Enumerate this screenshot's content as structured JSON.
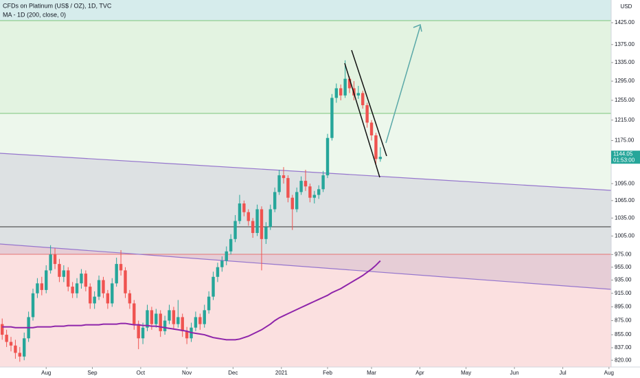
{
  "chart_data": {
    "type": "candlestick",
    "title": "CFDs on Platinum (US$ / OZ), 1D, TVC",
    "y_unit": "USD",
    "log_scale": true,
    "up_color": "#26a69a",
    "down_color": "#ef5350",
    "ylim": [
      811,
      1479
    ],
    "yticks": [
      {
        "value": 1425,
        "label": "1425.00"
      },
      {
        "value": 1375,
        "label": "1375.00"
      },
      {
        "value": 1335,
        "label": "1335.00"
      },
      {
        "value": 1295,
        "label": "1295.00"
      },
      {
        "value": 1255,
        "label": "1255.00"
      },
      {
        "value": 1215,
        "label": "1215.00"
      },
      {
        "value": 1175,
        "label": "1175.00"
      },
      {
        "value": 1095,
        "label": "1095.00"
      },
      {
        "value": 1065,
        "label": "1065.00"
      },
      {
        "value": 1035,
        "label": "1035.00"
      },
      {
        "value": 1005,
        "label": "1005.00"
      },
      {
        "value": 975,
        "label": "975.00"
      },
      {
        "value": 955,
        "label": "955.00"
      },
      {
        "value": 935,
        "label": "935.00"
      },
      {
        "value": 915,
        "label": "915.00"
      },
      {
        "value": 895,
        "label": "895.00"
      },
      {
        "value": 875,
        "label": "875.00"
      },
      {
        "value": 855,
        "label": "855.00"
      },
      {
        "value": 837,
        "label": "837.00"
      },
      {
        "value": 820,
        "label": "820.00"
      }
    ],
    "xlim": [
      0,
      139
    ],
    "xticks": [
      {
        "value": 10.5,
        "label": "Aug"
      },
      {
        "value": 21,
        "label": "Sep"
      },
      {
        "value": 32,
        "label": "Oct"
      },
      {
        "value": 42.5,
        "label": "Nov"
      },
      {
        "value": 53,
        "label": "Dec"
      },
      {
        "value": 64,
        "label": "2021"
      },
      {
        "value": 74.5,
        "label": "Feb"
      },
      {
        "value": 84.5,
        "label": "Mar"
      },
      {
        "value": 95.5,
        "label": "Apr"
      },
      {
        "value": 106,
        "label": "May"
      },
      {
        "value": 117,
        "label": "Jun"
      },
      {
        "value": 128,
        "label": "Jul"
      },
      {
        "value": 138.5,
        "label": "Aug"
      }
    ],
    "open": [
      870,
      855,
      845,
      840,
      830,
      825,
      850,
      880,
      915,
      930,
      920,
      950,
      975,
      960,
      940,
      950,
      925,
      915,
      930,
      945,
      925,
      900,
      910,
      935,
      915,
      900,
      930,
      960,
      950,
      915,
      900,
      870,
      850,
      865,
      890,
      870,
      885,
      860,
      875,
      890,
      870,
      880,
      860,
      850,
      865,
      880,
      870,
      890,
      910,
      940,
      955,
      965,
      980,
      1000,
      1030,
      1060,
      1045,
      1030,
      1010,
      1050,
      1000,
      1020,
      1050,
      1080,
      1110,
      1105,
      1070,
      1050,
      1080,
      1100,
      1090,
      1070,
      1075,
      1085,
      1110,
      1180,
      1260,
      1280,
      1265,
      1300,
      1280,
      1265,
      1270,
      1245,
      1210,
      1185,
      1140
    ],
    "high": [
      878,
      862,
      852,
      848,
      838,
      858,
      888,
      922,
      938,
      940,
      958,
      990,
      985,
      968,
      958,
      955,
      932,
      938,
      952,
      950,
      930,
      918,
      942,
      940,
      920,
      938,
      970,
      982,
      955,
      920,
      905,
      875,
      872,
      898,
      895,
      892,
      890,
      882,
      898,
      895,
      905,
      885,
      866,
      872,
      888,
      885,
      898,
      918,
      948,
      962,
      972,
      988,
      1008,
      1040,
      1075,
      1065,
      1050,
      1035,
      1058,
      1055,
      1028,
      1058,
      1088,
      1120,
      1125,
      1110,
      1075,
      1088,
      1108,
      1120,
      1095,
      1082,
      1092,
      1118,
      1188,
      1268,
      1290,
      1288,
      1340,
      1305,
      1295,
      1285,
      1275,
      1250,
      1215,
      1190,
      1162
    ],
    "low": [
      848,
      838,
      832,
      822,
      818,
      820,
      845,
      875,
      908,
      912,
      915,
      945,
      952,
      932,
      932,
      918,
      908,
      908,
      922,
      918,
      892,
      892,
      905,
      908,
      892,
      895,
      925,
      942,
      908,
      892,
      862,
      835,
      842,
      860,
      862,
      865,
      852,
      855,
      870,
      862,
      865,
      852,
      842,
      845,
      860,
      862,
      865,
      885,
      905,
      932,
      948,
      958,
      975,
      995,
      1025,
      1038,
      1022,
      1002,
      1005,
      950,
      992,
      1015,
      1045,
      1075,
      1095,
      1062,
      1015,
      1045,
      1075,
      1082,
      1062,
      1060,
      1068,
      1080,
      1105,
      1175,
      1250,
      1255,
      1260,
      1270,
      1255,
      1258,
      1238,
      1200,
      1175,
      1130,
      1135
    ],
    "close": [
      855,
      845,
      840,
      830,
      825,
      850,
      880,
      915,
      930,
      920,
      950,
      975,
      960,
      940,
      950,
      925,
      915,
      930,
      945,
      925,
      900,
      910,
      935,
      915,
      900,
      930,
      960,
      950,
      915,
      900,
      870,
      850,
      865,
      890,
      870,
      885,
      860,
      875,
      890,
      870,
      880,
      860,
      850,
      865,
      880,
      870,
      890,
      910,
      940,
      955,
      965,
      980,
      1000,
      1030,
      1060,
      1045,
      1030,
      1010,
      1050,
      1000,
      1020,
      1050,
      1080,
      1110,
      1105,
      1070,
      1050,
      1080,
      1100,
      1090,
      1070,
      1075,
      1085,
      1110,
      1180,
      1260,
      1280,
      1265,
      1300,
      1280,
      1265,
      1270,
      1245,
      1210,
      1185,
      1140,
      1144.05
    ],
    "series": [
      {
        "name": "MA - 1D (200, close, 0)",
        "color": "#8e24aa",
        "values": [
          866,
          866,
          866,
          865,
          865,
          865,
          865,
          865,
          866,
          866,
          866,
          866,
          867,
          867,
          867,
          868,
          868,
          868,
          868,
          869,
          869,
          869,
          869,
          870,
          870,
          870,
          870,
          871,
          871,
          870,
          869,
          869,
          868,
          868,
          867,
          867,
          866,
          865,
          864,
          863,
          862,
          861,
          860,
          858,
          857,
          856,
          855,
          853,
          851,
          850,
          849,
          848,
          848,
          848,
          849,
          851,
          853,
          856,
          859,
          862,
          866,
          870,
          875,
          879,
          882,
          885,
          888,
          891,
          894,
          897,
          900,
          903,
          906,
          909,
          912,
          916,
          919,
          922,
          926,
          930,
          934,
          938,
          942,
          947,
          952,
          958,
          965
        ]
      }
    ],
    "price_tag": {
      "value": 1144.05,
      "label": "1144.05",
      "countdown": "01:53:00"
    }
  }
}
